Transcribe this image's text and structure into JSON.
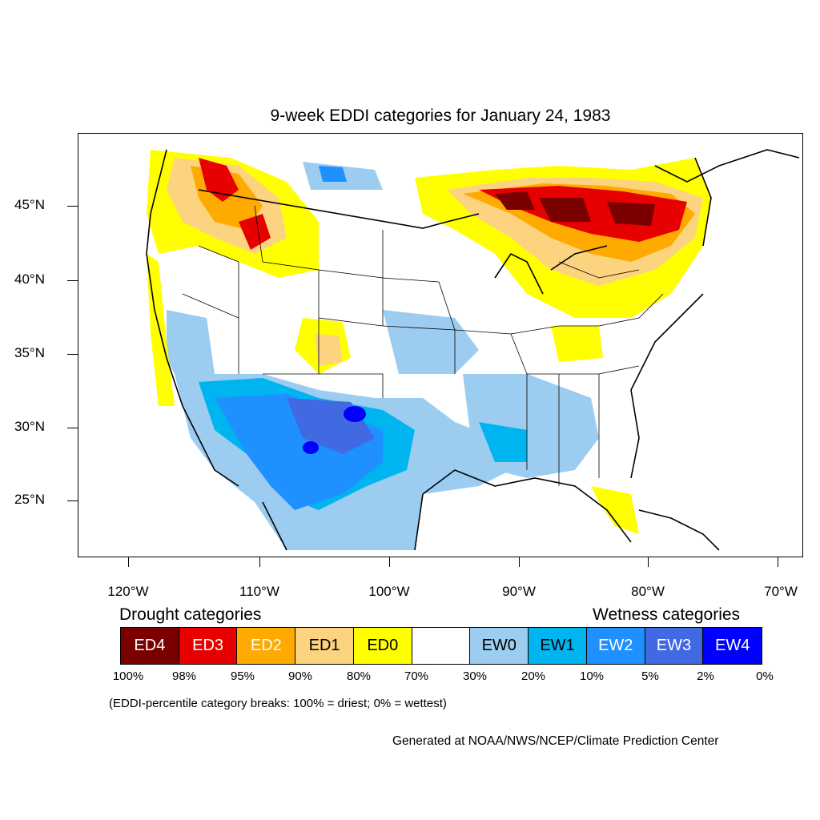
{
  "title": "9-week EDDI categories for January 24, 1983",
  "lat_labels": [
    "45°N",
    "40°N",
    "35°N",
    "30°N",
    "25°N"
  ],
  "lon_labels": [
    "120°W",
    "110°W",
    "100°W",
    "90°W",
    "80°W",
    "70°W"
  ],
  "legend": {
    "drought_heading": "Drought categories",
    "wetness_heading": "Wetness categories",
    "categories": [
      {
        "label": "ED4",
        "color": "#7a0000",
        "text_color": "#ffffff"
      },
      {
        "label": "ED3",
        "color": "#e60000",
        "text_color": "#ffffff"
      },
      {
        "label": "ED2",
        "color": "#ffaa00",
        "text_color": "#ffffff"
      },
      {
        "label": "ED1",
        "color": "#fcd37f",
        "text_color": "#000000"
      },
      {
        "label": "ED0",
        "color": "#ffff00",
        "text_color": "#000000"
      },
      {
        "label": "",
        "color": "#ffffff",
        "text_color": "#000000"
      },
      {
        "label": "EW0",
        "color": "#9ccdf0",
        "text_color": "#000000"
      },
      {
        "label": "EW1",
        "color": "#00b4f0",
        "text_color": "#000000"
      },
      {
        "label": "EW2",
        "color": "#1e90ff",
        "text_color": "#ffffff"
      },
      {
        "label": "EW3",
        "color": "#4169e1",
        "text_color": "#ffffff"
      },
      {
        "label": "EW4",
        "color": "#0000ff",
        "text_color": "#ffffff"
      }
    ],
    "breaks": [
      "100%",
      "98%",
      "95%",
      "90%",
      "80%",
      "70%",
      "30%",
      "20%",
      "10%",
      "5%",
      "2%",
      "0%"
    ]
  },
  "note": "(EDDI-percentile category breaks: 100% = driest; 0% = wettest)",
  "credit": "Generated at NOAA/NWS/NCEP/Climate Prediction Center"
}
